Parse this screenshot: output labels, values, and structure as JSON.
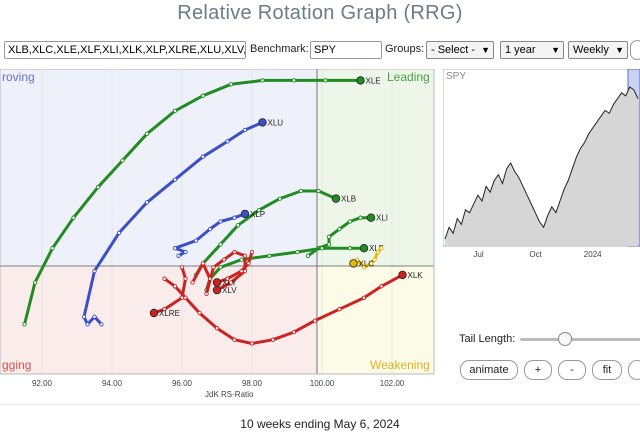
{
  "page": {
    "title": "Relative Rotation Graph (RRG)"
  },
  "toolbar": {
    "symbols_value": "XLB,XLC,XLE,XLF,XLI,XLK,XLP,XLRE,XLU,XLV,XL",
    "benchmark_label": "Benchmark:",
    "benchmark_value": "SPY",
    "groups_label": "Groups:",
    "groups_select": "- Select -",
    "period_select": "1 year",
    "frequency_select": "Weekly"
  },
  "quadrants": {
    "improving": "Improving",
    "leading": "Leading",
    "lagging": "Lagging",
    "weakening": "Weakening",
    "improving_visible": "roving",
    "lagging_visible": "gging",
    "improving_color": "#6a6fd0",
    "leading_color": "#46a046",
    "lagging_color": "#d25050",
    "weakening_color": "#e0b020"
  },
  "chart_data": {
    "type": "scatter",
    "title": "",
    "xlabel": "JdK RS-Ratio",
    "ylabel": "",
    "x_ticks": [
      "92.00",
      "94.00",
      "96.00",
      "98.00",
      "100.00",
      "102.00"
    ],
    "xlim": [
      90.8,
      103.2
    ],
    "ylim": [
      96.5,
      104.5
    ],
    "series": [
      {
        "name": "XLE",
        "color": "#228b22",
        "points": [
          [
            91.5,
            97.8
          ],
          [
            91.8,
            98.9
          ],
          [
            92.3,
            99.8
          ],
          [
            92.9,
            100.6
          ],
          [
            93.6,
            101.4
          ],
          [
            94.3,
            102.1
          ],
          [
            95.0,
            102.8
          ],
          [
            95.8,
            103.4
          ],
          [
            96.6,
            103.8
          ],
          [
            97.4,
            104.1
          ],
          [
            98.3,
            104.2
          ],
          [
            99.2,
            104.2
          ],
          [
            100.1,
            104.2
          ],
          [
            101.1,
            104.2
          ]
        ]
      },
      {
        "name": "XLU",
        "color": "#3a4fc8",
        "points": [
          [
            93.7,
            97.8
          ],
          [
            93.5,
            98.0
          ],
          [
            93.3,
            97.8
          ],
          [
            93.2,
            98.0
          ],
          [
            93.5,
            99.2
          ],
          [
            94.2,
            100.2
          ],
          [
            95.0,
            101.0
          ],
          [
            95.8,
            101.6
          ],
          [
            96.6,
            102.2
          ],
          [
            97.3,
            102.6
          ],
          [
            97.8,
            102.9
          ],
          [
            98.3,
            103.1
          ]
        ]
      },
      {
        "name": "XLB",
        "color": "#228b22",
        "points": [
          [
            96.4,
            99.1
          ],
          [
            96.6,
            99.4
          ],
          [
            97.1,
            99.9
          ],
          [
            97.6,
            100.4
          ],
          [
            98.2,
            100.8
          ],
          [
            98.8,
            101.1
          ],
          [
            99.4,
            101.3
          ],
          [
            99.9,
            101.3
          ],
          [
            100.4,
            101.1
          ]
        ]
      },
      {
        "name": "XLP",
        "color": "#3a4fc8",
        "points": [
          [
            95.9,
            99.6
          ],
          [
            96.1,
            99.7
          ],
          [
            95.8,
            99.8
          ],
          [
            96.4,
            100.0
          ],
          [
            96.8,
            100.3
          ],
          [
            97.1,
            100.5
          ],
          [
            97.5,
            100.6
          ],
          [
            97.8,
            100.7
          ]
        ]
      },
      {
        "name": "XLI",
        "color": "#228b22",
        "points": [
          [
            99.6,
            99.6
          ],
          [
            99.9,
            99.8
          ],
          [
            100.2,
            99.9
          ],
          [
            100.2,
            100.1
          ],
          [
            100.5,
            100.3
          ],
          [
            100.8,
            100.5
          ],
          [
            101.1,
            100.6
          ],
          [
            101.4,
            100.6
          ]
        ]
      },
      {
        "name": "XLF",
        "color": "#228b22",
        "points": [
          [
            96.7,
            98.7
          ],
          [
            96.8,
            99.0
          ],
          [
            97.1,
            99.3
          ],
          [
            97.7,
            99.5
          ],
          [
            98.5,
            99.6
          ],
          [
            99.3,
            99.7
          ],
          [
            100.0,
            99.8
          ],
          [
            100.8,
            99.8
          ],
          [
            101.2,
            99.8
          ]
        ]
      },
      {
        "name": "XLC",
        "color": "#e6b800",
        "points": [
          [
            101.7,
            99.8
          ],
          [
            101.6,
            99.7
          ],
          [
            101.5,
            99.5
          ],
          [
            101.4,
            99.4
          ],
          [
            101.2,
            99.3
          ],
          [
            101.0,
            99.5
          ],
          [
            100.9,
            99.4
          ]
        ]
      },
      {
        "name": "XLK",
        "color": "#cc2222",
        "points": [
          [
            95.5,
            99.0
          ],
          [
            95.8,
            98.8
          ],
          [
            96.1,
            98.5
          ],
          [
            96.5,
            98.1
          ],
          [
            97.0,
            97.7
          ],
          [
            97.5,
            97.4
          ],
          [
            98.0,
            97.3
          ],
          [
            98.6,
            97.4
          ],
          [
            99.2,
            97.6
          ],
          [
            99.8,
            97.9
          ],
          [
            100.5,
            98.2
          ],
          [
            101.2,
            98.5
          ],
          [
            101.7,
            98.8
          ],
          [
            102.3,
            99.1
          ]
        ]
      },
      {
        "name": "XLV",
        "color": "#cc2222",
        "points": [
          [
            96.3,
            98.9
          ],
          [
            96.6,
            99.4
          ],
          [
            96.8,
            99.0
          ],
          [
            96.7,
            98.6
          ],
          [
            96.9,
            99.3
          ],
          [
            97.2,
            99.5
          ],
          [
            97.5,
            99.7
          ],
          [
            97.8,
            99.6
          ],
          [
            97.8,
            99.2
          ],
          [
            97.4,
            98.9
          ],
          [
            97.0,
            98.7
          ]
        ]
      },
      {
        "name": "XLRE",
        "color": "#cc2222",
        "points": [
          [
            96.0,
            99.3
          ],
          [
            96.1,
            99.0
          ],
          [
            96.0,
            98.5
          ],
          [
            95.5,
            98.2
          ],
          [
            95.2,
            98.1
          ]
        ]
      },
      {
        "name": "XLY",
        "color": "#cc2222",
        "points": [
          [
            98.0,
            99.7
          ],
          [
            97.9,
            99.4
          ],
          [
            97.7,
            99.2
          ],
          [
            97.3,
            99.0
          ],
          [
            97.0,
            98.9
          ]
        ]
      }
    ]
  },
  "spy_chart": {
    "symbol": "SPY",
    "x_ticks": [
      "Jul",
      "Oct",
      "2024"
    ],
    "values": [
      48,
      52,
      50,
      55,
      53,
      58,
      57,
      60,
      63,
      61,
      66,
      64,
      68,
      70,
      67,
      72,
      74,
      71,
      69,
      66,
      63,
      60,
      57,
      54,
      52,
      56,
      59,
      57,
      61,
      65,
      68,
      72,
      76,
      79,
      81,
      84,
      86,
      88,
      90,
      92,
      91,
      94,
      96,
      98,
      97,
      100,
      99,
      96
    ]
  },
  "controls": {
    "tail_length_label": "Tail Length:",
    "tail_length_value": 0.35,
    "animate": "animate",
    "plus": "+",
    "minus": "-",
    "fit": "fit"
  },
  "footer": {
    "text": "10 weeks ending May 6, 2024"
  }
}
